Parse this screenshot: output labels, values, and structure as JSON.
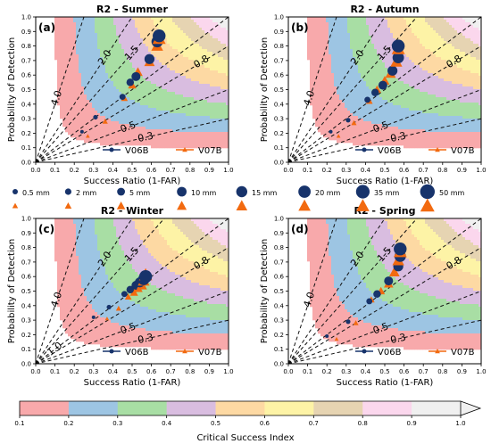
{
  "figure": {
    "colorbar": {
      "label": "Critical Success Index",
      "ticks": [
        "0.1",
        "0.2",
        "0.3",
        "0.4",
        "0.5",
        "0.6",
        "0.7",
        "0.8",
        "0.9",
        "1.0"
      ],
      "colors": [
        "#f8a9ab",
        "#9dc5e3",
        "#a8dea4",
        "#d9bde0",
        "#fdd9a3",
        "#fdf3a6",
        "#e6d4b2",
        "#fbd7ed",
        "#f0f0f0"
      ]
    },
    "size_legend": {
      "entries": [
        "0.5 mm",
        "2 mm",
        "5 mm",
        "10 mm",
        "15 mm",
        "20 mm",
        "35 mm",
        "50 mm"
      ],
      "v06b_color": "#17336b",
      "v07b_color": "#f26a10"
    },
    "series_styles": {
      "V06B": {
        "color": "#17336b",
        "marker": "circle"
      },
      "V07B": {
        "color": "#f26a10",
        "marker": "triangle"
      }
    }
  },
  "chart_data": [
    {
      "type": "scatter",
      "panel_label": "(a)",
      "title": "R2 - Summer",
      "xlabel": "Success Ratio (1-FAR)",
      "ylabel": "Probability of Detection",
      "xlim": [
        0,
        1
      ],
      "ylim": [
        0,
        1
      ],
      "xticks": [
        "0.0",
        "0.1",
        "0.2",
        "0.3",
        "0.4",
        "0.5",
        "0.6",
        "0.7",
        "0.8",
        "0.9",
        "1.0"
      ],
      "yticks": [
        "0.0",
        "0.1",
        "0.2",
        "0.3",
        "0.4",
        "0.5",
        "0.6",
        "0.7",
        "0.8",
        "0.9",
        "1.0"
      ],
      "bias_labels": [
        {
          "text": "4.0",
          "bias": 4.0
        },
        {
          "text": "2.0",
          "bias": 2.0
        },
        {
          "text": "1.5",
          "bias": 1.5
        },
        {
          "text": "0.8",
          "bias": 0.8
        },
        {
          "text": "0.5",
          "bias": 0.5
        },
        {
          "text": "0.3",
          "bias": 0.3
        }
      ],
      "legend": [
        "V06B",
        "V07B"
      ],
      "series": [
        {
          "name": "V06B",
          "points": [
            [
              0.64,
              0.87
            ],
            [
              0.63,
              0.83
            ],
            [
              0.59,
              0.71
            ],
            [
              0.52,
              0.59
            ],
            [
              0.49,
              0.55
            ],
            [
              0.45,
              0.45
            ],
            [
              0.31,
              0.31
            ],
            [
              0.24,
              0.21
            ]
          ]
        },
        {
          "name": "V07B",
          "points": [
            [
              0.64,
              0.85
            ],
            [
              0.63,
              0.8
            ],
            [
              0.59,
              0.69
            ],
            [
              0.53,
              0.62
            ],
            [
              0.5,
              0.53
            ],
            [
              0.46,
              0.44
            ],
            [
              0.36,
              0.28
            ],
            [
              0.27,
              0.18
            ]
          ]
        }
      ]
    },
    {
      "type": "scatter",
      "panel_label": "(b)",
      "title": "R2 - Autumn",
      "xlabel": "Success Ratio (1-FAR)",
      "ylabel": "Probability of Detection",
      "xlim": [
        0,
        1
      ],
      "ylim": [
        0,
        1
      ],
      "xticks": [
        "0.0",
        "0.1",
        "0.2",
        "0.3",
        "0.4",
        "0.5",
        "0.6",
        "0.7",
        "0.8",
        "0.9",
        "1.0"
      ],
      "yticks": [
        "0.0",
        "0.1",
        "0.2",
        "0.3",
        "0.4",
        "0.5",
        "0.6",
        "0.7",
        "0.8",
        "0.9",
        "1.0"
      ],
      "bias_labels": [
        {
          "text": "4.0",
          "bias": 4.0
        },
        {
          "text": "2.0",
          "bias": 2.0
        },
        {
          "text": "1.5",
          "bias": 1.5
        },
        {
          "text": "0.8",
          "bias": 0.8
        },
        {
          "text": "0.5",
          "bias": 0.5
        },
        {
          "text": "0.3",
          "bias": 0.3
        }
      ],
      "legend": [
        "V06B",
        "V07B"
      ],
      "series": [
        {
          "name": "V06B",
          "points": [
            [
              0.57,
              0.8
            ],
            [
              0.57,
              0.72
            ],
            [
              0.54,
              0.63
            ],
            [
              0.49,
              0.53
            ],
            [
              0.45,
              0.48
            ],
            [
              0.41,
              0.43
            ],
            [
              0.31,
              0.29
            ],
            [
              0.22,
              0.21
            ]
          ]
        },
        {
          "name": "V07B",
          "points": [
            [
              0.57,
              0.78
            ],
            [
              0.56,
              0.69
            ],
            [
              0.53,
              0.61
            ],
            [
              0.5,
              0.56
            ],
            [
              0.46,
              0.5
            ],
            [
              0.42,
              0.42
            ],
            [
              0.34,
              0.27
            ],
            [
              0.26,
              0.18
            ]
          ]
        }
      ]
    },
    {
      "type": "scatter",
      "panel_label": "(c)",
      "title": "R2 - Winter",
      "xlabel": "Success Ratio (1-FAR)",
      "ylabel": "Probability of Detection",
      "xlim": [
        0,
        1
      ],
      "ylim": [
        0,
        1
      ],
      "xticks": [
        "0.0",
        "0.1",
        "0.2",
        "0.3",
        "0.4",
        "0.5",
        "0.6",
        "0.7",
        "0.8",
        "0.9",
        "1.0"
      ],
      "yticks": [
        "0.0",
        "0.1",
        "0.2",
        "0.3",
        "0.4",
        "0.5",
        "0.6",
        "0.7",
        "0.8",
        "0.9",
        "1.0"
      ],
      "bias_labels": [
        {
          "text": "4.0",
          "bias": 4.0
        },
        {
          "text": "2.0",
          "bias": 2.0
        },
        {
          "text": "1.5",
          "bias": 1.5
        },
        {
          "text": "1.0",
          "bias": 1.0
        },
        {
          "text": "0.8",
          "bias": 0.8
        },
        {
          "text": "0.5",
          "bias": 0.5
        },
        {
          "text": "0.3",
          "bias": 0.3
        }
      ],
      "legend": [
        "V06B",
        "V07B"
      ],
      "series": [
        {
          "name": "V06B",
          "points": [
            [
              0.57,
              0.6
            ],
            [
              0.56,
              0.58
            ],
            [
              0.54,
              0.56
            ],
            [
              0.52,
              0.54
            ],
            [
              0.49,
              0.51
            ],
            [
              0.46,
              0.48
            ],
            [
              0.38,
              0.39
            ],
            [
              0.3,
              0.32
            ]
          ]
        },
        {
          "name": "V07B",
          "points": [
            [
              0.57,
              0.61
            ],
            [
              0.56,
              0.57
            ],
            [
              0.55,
              0.54
            ],
            [
              0.53,
              0.52
            ],
            [
              0.51,
              0.49
            ],
            [
              0.48,
              0.46
            ],
            [
              0.43,
              0.38
            ],
            [
              0.37,
              0.31
            ]
          ]
        }
      ]
    },
    {
      "type": "scatter",
      "panel_label": "(d)",
      "title": "R2 - Spring",
      "xlabel": "Success Ratio (1-FAR)",
      "ylabel": "Probability of Detection",
      "xlim": [
        0,
        1
      ],
      "ylim": [
        0,
        1
      ],
      "xticks": [
        "0.0",
        "0.1",
        "0.2",
        "0.3",
        "0.4",
        "0.5",
        "0.6",
        "0.7",
        "0.8",
        "0.9",
        "1.0"
      ],
      "yticks": [
        "0.0",
        "0.1",
        "0.2",
        "0.3",
        "0.4",
        "0.5",
        "0.6",
        "0.7",
        "0.8",
        "0.9",
        "1.0"
      ],
      "bias_labels": [
        {
          "text": "4.0",
          "bias": 4.0
        },
        {
          "text": "2.0",
          "bias": 2.0
        },
        {
          "text": "1.5",
          "bias": 1.5
        },
        {
          "text": "0.8",
          "bias": 0.8
        },
        {
          "text": "0.5",
          "bias": 0.5
        },
        {
          "text": "0.3",
          "bias": 0.3
        }
      ],
      "legend": [
        "V06B",
        "V07B"
      ],
      "series": [
        {
          "name": "V06B",
          "points": [
            [
              0.58,
              0.79
            ],
            [
              0.58,
              0.74
            ],
            [
              0.57,
              0.67
            ],
            [
              0.52,
              0.57
            ],
            [
              0.46,
              0.48
            ],
            [
              0.42,
              0.43
            ],
            [
              0.31,
              0.29
            ],
            [
              0.2,
              0.19
            ]
          ]
        },
        {
          "name": "V07B",
          "points": [
            [
              0.58,
              0.77
            ],
            [
              0.57,
              0.71
            ],
            [
              0.55,
              0.63
            ],
            [
              0.52,
              0.55
            ],
            [
              0.48,
              0.5
            ],
            [
              0.43,
              0.44
            ],
            [
              0.35,
              0.28
            ],
            [
              0.25,
              0.17
            ]
          ]
        }
      ]
    }
  ]
}
